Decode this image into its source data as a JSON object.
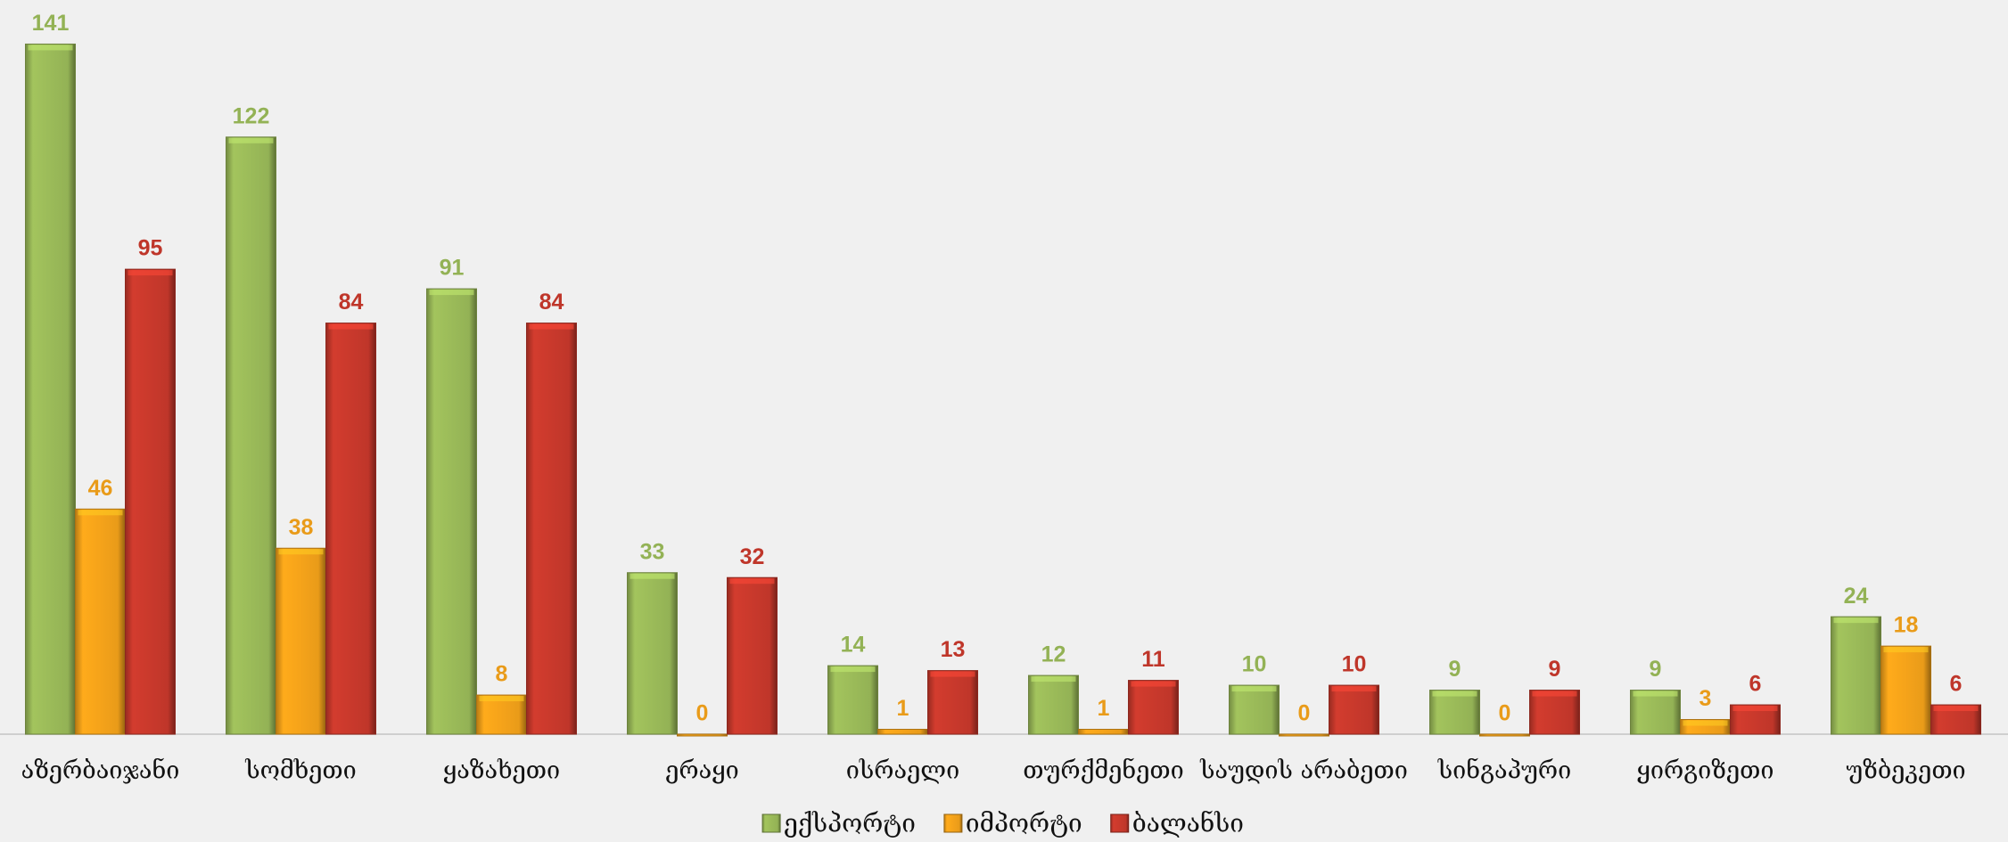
{
  "chart_data": {
    "type": "bar",
    "categories": [
      "აზერბაიჯანი",
      "სომხეთი",
      "ყაზახეთი",
      "ერაყი",
      "ისრაელი",
      "თურქმენეთი",
      "საუდის არაბეთი",
      "სინგაპური",
      "ყირგიზეთი",
      "უზბეკეთი"
    ],
    "series": [
      {
        "name": "ექსპორტი",
        "color": "#9bbb59",
        "values": [
          141,
          122,
          91,
          33,
          14,
          12,
          10,
          9,
          9,
          24
        ]
      },
      {
        "name": "იმპორტი",
        "color": "#f5a31a",
        "values": [
          46,
          38,
          8,
          0,
          1,
          1,
          0,
          0,
          3,
          18
        ]
      },
      {
        "name": "ბალანსი",
        "color": "#c9392c",
        "values": [
          95,
          84,
          84,
          32,
          13,
          11,
          10,
          9,
          6,
          6
        ]
      }
    ],
    "ylim": [
      0,
      150
    ],
    "legend": "bottom"
  }
}
